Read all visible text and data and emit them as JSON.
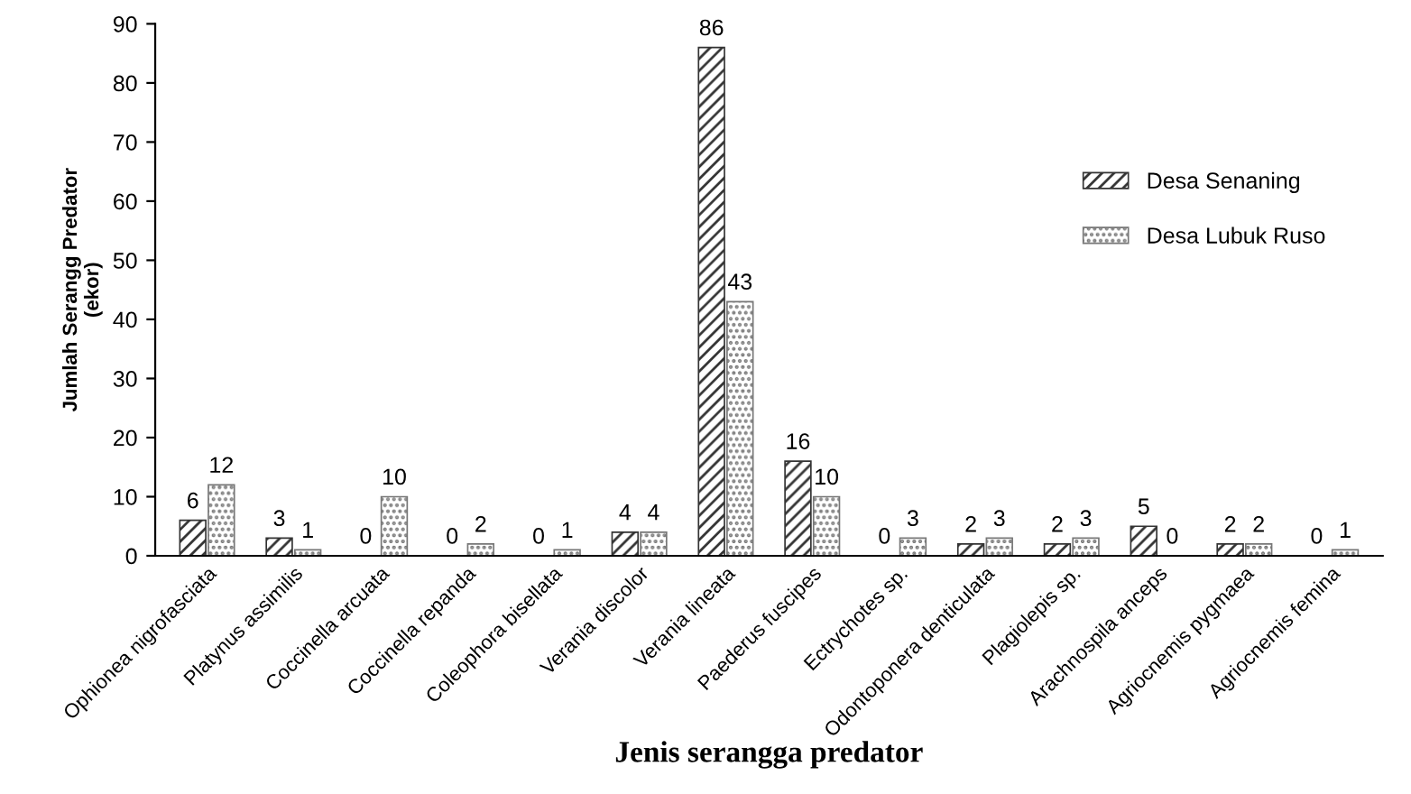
{
  "chart_data": {
    "type": "bar",
    "xlabel": "Jenis serangga predator",
    "ylabel": "Jumlah Serangg Predator\n(ekor)",
    "categories": [
      "Ophionea nigrofasciata",
      "Platynus assimilis",
      "Coccinella arcuata",
      "Coccinella repanda",
      "Coleophora bisellata",
      "Verania discolor",
      "Verania lineata",
      "Paederus fuscipes",
      "Ectrychotes sp.",
      "Odontoponera denticulata",
      "Plagiolepis sp.",
      "Arachnospila anceps",
      "Agriocnemis pygmaea",
      "Agriocnemis femina"
    ],
    "series": [
      {
        "name": "Desa Senaning",
        "color": "#333333",
        "values": [
          6,
          3,
          0,
          0,
          0,
          4,
          86,
          16,
          0,
          2,
          2,
          5,
          2,
          0
        ]
      },
      {
        "name": "Desa Lubuk Ruso",
        "color": "#777777",
        "values": [
          12,
          1,
          10,
          2,
          1,
          4,
          43,
          10,
          3,
          3,
          3,
          0,
          2,
          1
        ]
      }
    ],
    "ylim": [
      0,
      90
    ],
    "yticks": [
      0,
      10,
      20,
      30,
      40,
      50,
      60,
      70,
      80,
      90
    ],
    "data_labels": true,
    "legend": "right",
    "grid": false
  }
}
